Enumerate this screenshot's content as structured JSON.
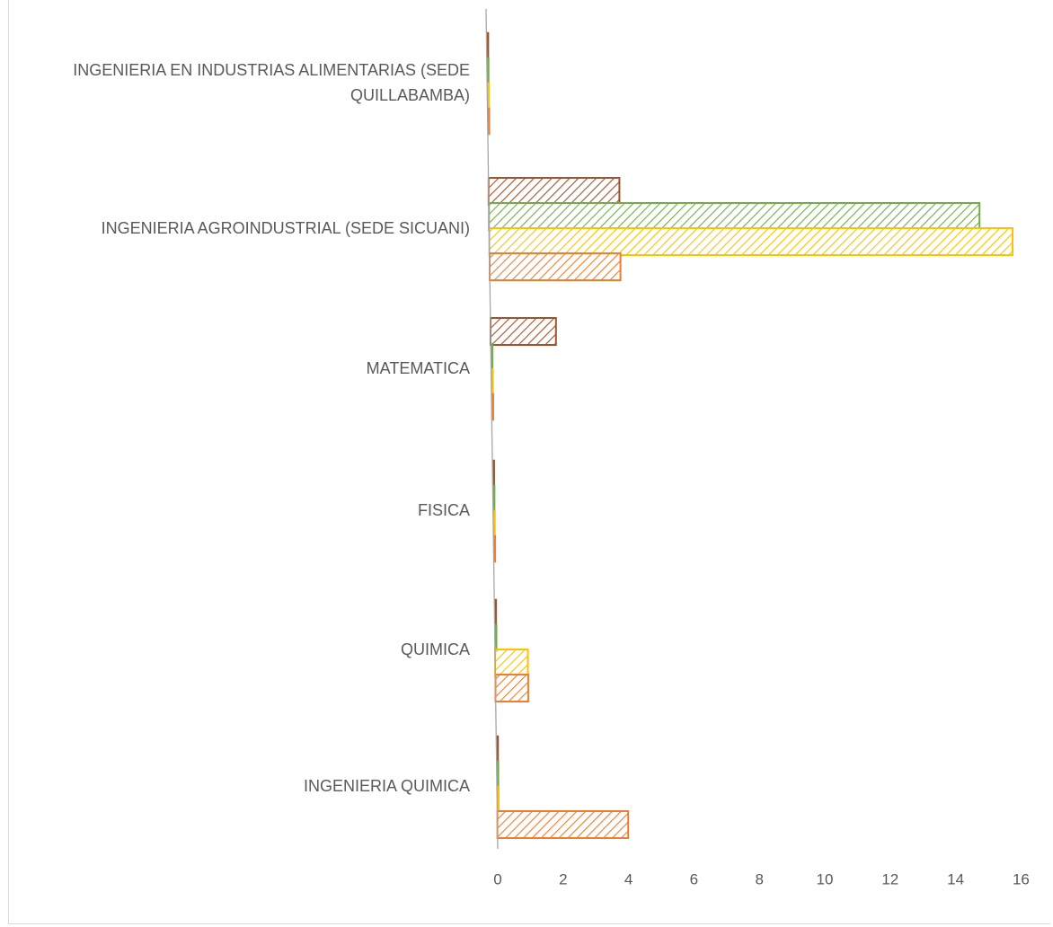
{
  "chart_data": {
    "type": "bar",
    "orientation": "horizontal",
    "categories": [
      "INGENIERIA EN INDUSTRIAS ALIMENTARIAS (SEDE QUILLABAMBA)",
      "INGENIERIA AGROINDUSTRIAL (SEDE SICUANI)",
      "MATEMATICA",
      "FISICA",
      "QUIMICA",
      "INGENIERIA QUIMICA"
    ],
    "category_label_lines": [
      [
        "INGENIERIA EN INDUSTRIAS ALIMENTARIAS (SEDE",
        "QUILLABAMBA)"
      ],
      [
        "INGENIERIA AGROINDUSTRIAL (SEDE SICUANI)"
      ],
      [
        "MATEMATICA"
      ],
      [
        "FISICA"
      ],
      [
        "QUIMICA"
      ],
      [
        "INGENIERIA QUIMICA"
      ]
    ],
    "series": [
      {
        "values": [
          0,
          4,
          2,
          0,
          0,
          0
        ],
        "color": "#a0522d"
      },
      {
        "values": [
          0,
          15,
          0,
          0,
          0,
          0
        ],
        "color": "#70ad47"
      },
      {
        "values": [
          0,
          16,
          0,
          0,
          1,
          0
        ],
        "color": "#ffc000"
      },
      {
        "values": [
          0,
          4,
          0,
          0,
          1,
          4
        ],
        "color": "#ed7d31"
      }
    ],
    "xlim": [
      0,
      16
    ],
    "x_ticks": [
      "0",
      "2",
      "4",
      "6",
      "8",
      "10",
      "12",
      "14",
      "16"
    ],
    "pattern": "diagonal-hatch",
    "grid": false,
    "legend": "none"
  }
}
